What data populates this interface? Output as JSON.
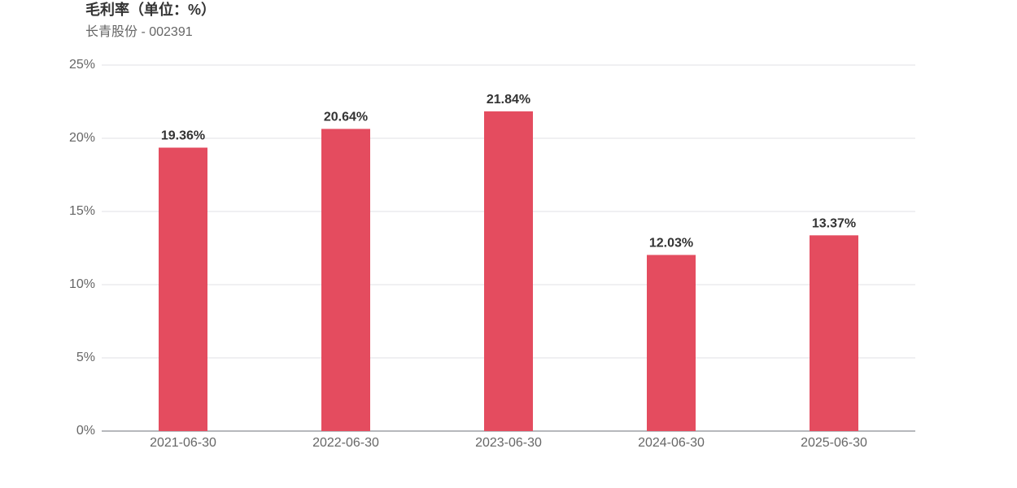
{
  "chart_data": {
    "type": "bar",
    "title": "毛利率（单位：%）",
    "subtitle": "长青股份 - 002391",
    "categories": [
      "2021-06-30",
      "2022-06-30",
      "2023-06-30",
      "2024-06-30",
      "2025-06-30"
    ],
    "values": [
      19.36,
      20.64,
      21.84,
      12.03,
      13.37
    ],
    "value_labels": [
      "19.36%",
      "20.64%",
      "21.84%",
      "12.03%",
      "13.37%"
    ],
    "color": "#e44c5f",
    "ylim": [
      0,
      25
    ],
    "yticks": [
      {
        "value": 0,
        "label": "0%"
      },
      {
        "value": 5,
        "label": "5%"
      },
      {
        "value": 10,
        "label": "10%"
      },
      {
        "value": 15,
        "label": "15%"
      },
      {
        "value": 20,
        "label": "20%"
      },
      {
        "value": 25,
        "label": "25%"
      }
    ],
    "grid": true
  }
}
